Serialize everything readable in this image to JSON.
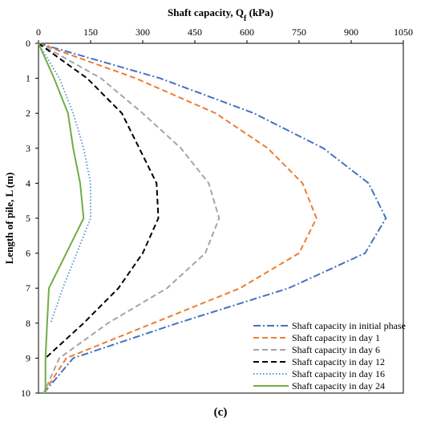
{
  "caption": "(c)",
  "chart_data": {
    "type": "line",
    "orientation": "depth-profile",
    "xlabel_prefix": "Shaft capacity, Q",
    "xlabel_subscript": "f",
    "xlabel_suffix": " (kPa)",
    "ylabel": "Length of pile, L (m)",
    "xlim": [
      0,
      1050
    ],
    "ylim": [
      0,
      10
    ],
    "xticks": [
      0,
      150,
      300,
      450,
      600,
      750,
      900,
      1050
    ],
    "yticks": [
      0,
      1,
      2,
      3,
      4,
      5,
      6,
      7,
      8,
      9,
      10
    ],
    "x_axis_position": "top",
    "y_axis_reversed": true,
    "grid": false,
    "legend_position": "bottom-right",
    "series": [
      {
        "name": "Shaft capacity in initial phase",
        "color": "#4472C4",
        "dash": "dashdot",
        "x": [
          0,
          350,
          620,
          820,
          950,
          1000,
          940,
          720,
          400,
          100,
          15
        ],
        "y": [
          0,
          1,
          2,
          3,
          4,
          5,
          6,
          7,
          8,
          9,
          10
        ]
      },
      {
        "name": "Shaft capacity in day 1",
        "color": "#ED7D31",
        "dash": "dash",
        "x": [
          0,
          280,
          510,
          660,
          760,
          800,
          750,
          580,
          330,
          80,
          15
        ],
        "y": [
          0,
          1,
          2,
          3,
          4,
          5,
          6,
          7,
          8,
          9,
          10
        ]
      },
      {
        "name": "Shaft capacity in day 6",
        "color": "#A5A5A5",
        "dash": "dash",
        "x": [
          0,
          180,
          300,
          410,
          490,
          520,
          480,
          370,
          200,
          60,
          15
        ],
        "y": [
          0,
          1,
          2,
          3,
          4,
          5,
          6,
          7,
          8,
          9,
          10
        ]
      },
      {
        "name": "Shaft capacity in day 12",
        "color": "#000000",
        "dash": "dash",
        "x": [
          0,
          140,
          240,
          290,
          340,
          345,
          300,
          230,
          130,
          20
        ],
        "y": [
          0,
          1,
          2,
          3,
          4,
          5,
          6,
          7,
          8,
          9
        ]
      },
      {
        "name": "Shaft capacity in day 16",
        "color": "#5B9BD5",
        "dash": "dot",
        "x": [
          0,
          60,
          100,
          130,
          150,
          150,
          110,
          70,
          35
        ],
        "y": [
          0,
          1,
          2,
          3,
          4,
          5,
          6,
          7,
          8
        ]
      },
      {
        "name": "Shaft capacity in day 24",
        "color": "#70AD47",
        "dash": "solid",
        "x": [
          0,
          45,
          85,
          100,
          120,
          130,
          80,
          30,
          25,
          20,
          20
        ],
        "y": [
          0,
          1,
          2,
          3,
          4,
          5,
          6,
          7,
          8,
          9,
          10
        ]
      }
    ]
  }
}
